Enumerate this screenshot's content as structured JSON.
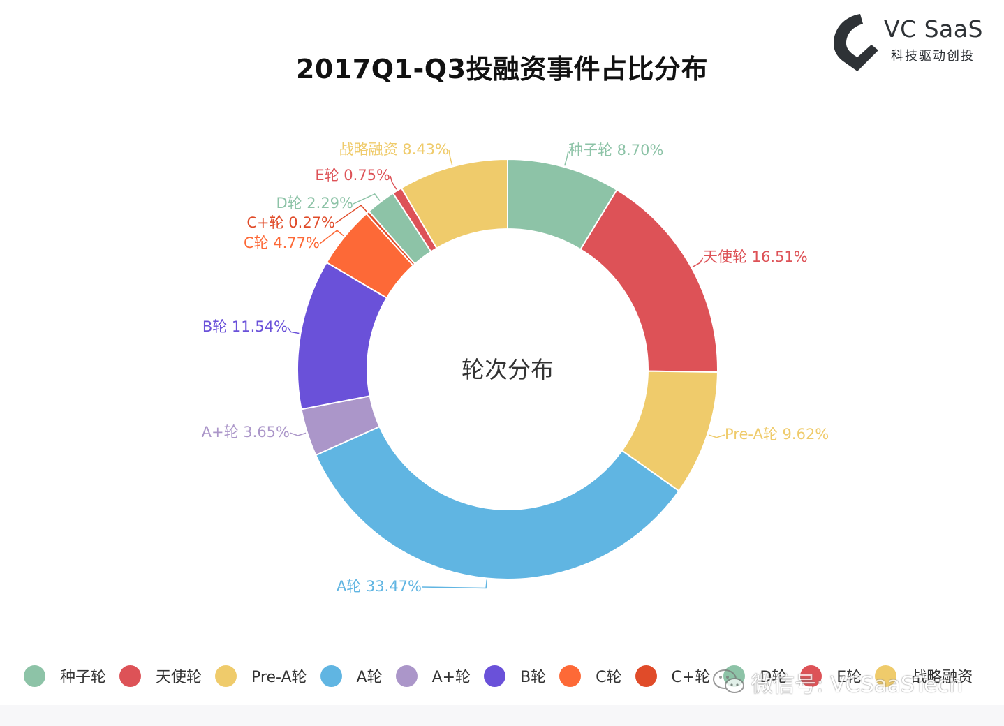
{
  "logo": {
    "name": "VC SaaS",
    "tagline": "科技驱动创投"
  },
  "watermark": {
    "text": "微信号: VCSaaSTech",
    "icon": "wechat-icon"
  },
  "chart_data": {
    "type": "pie",
    "variant": "donut",
    "title": "2017Q1-Q3投融资事件占比分布",
    "center_label": "轮次分布",
    "legend_position": "bottom",
    "categories": [
      "种子轮",
      "天使轮",
      "Pre-A轮",
      "A轮",
      "A+轮",
      "B轮",
      "C轮",
      "C+轮",
      "D轮",
      "E轮",
      "战略融资"
    ],
    "values": [
      8.7,
      16.51,
      9.62,
      33.47,
      3.65,
      11.54,
      4.77,
      0.27,
      2.29,
      0.75,
      8.43
    ],
    "value_labels": [
      "8.70%",
      "16.51%",
      "9.62%",
      "33.47%",
      "3.65%",
      "11.54%",
      "4.77%",
      "0.27%",
      "2.29%",
      "0.75%",
      "8.43%"
    ],
    "colors": [
      "#8dc3a7",
      "#dd5257",
      "#efcb6b",
      "#60b5e2",
      "#ab96c9",
      "#6a51d9",
      "#fd6937",
      "#e04b29",
      "#8dc3a7",
      "#dd5257",
      "#efcb6b"
    ],
    "unit": "%"
  }
}
